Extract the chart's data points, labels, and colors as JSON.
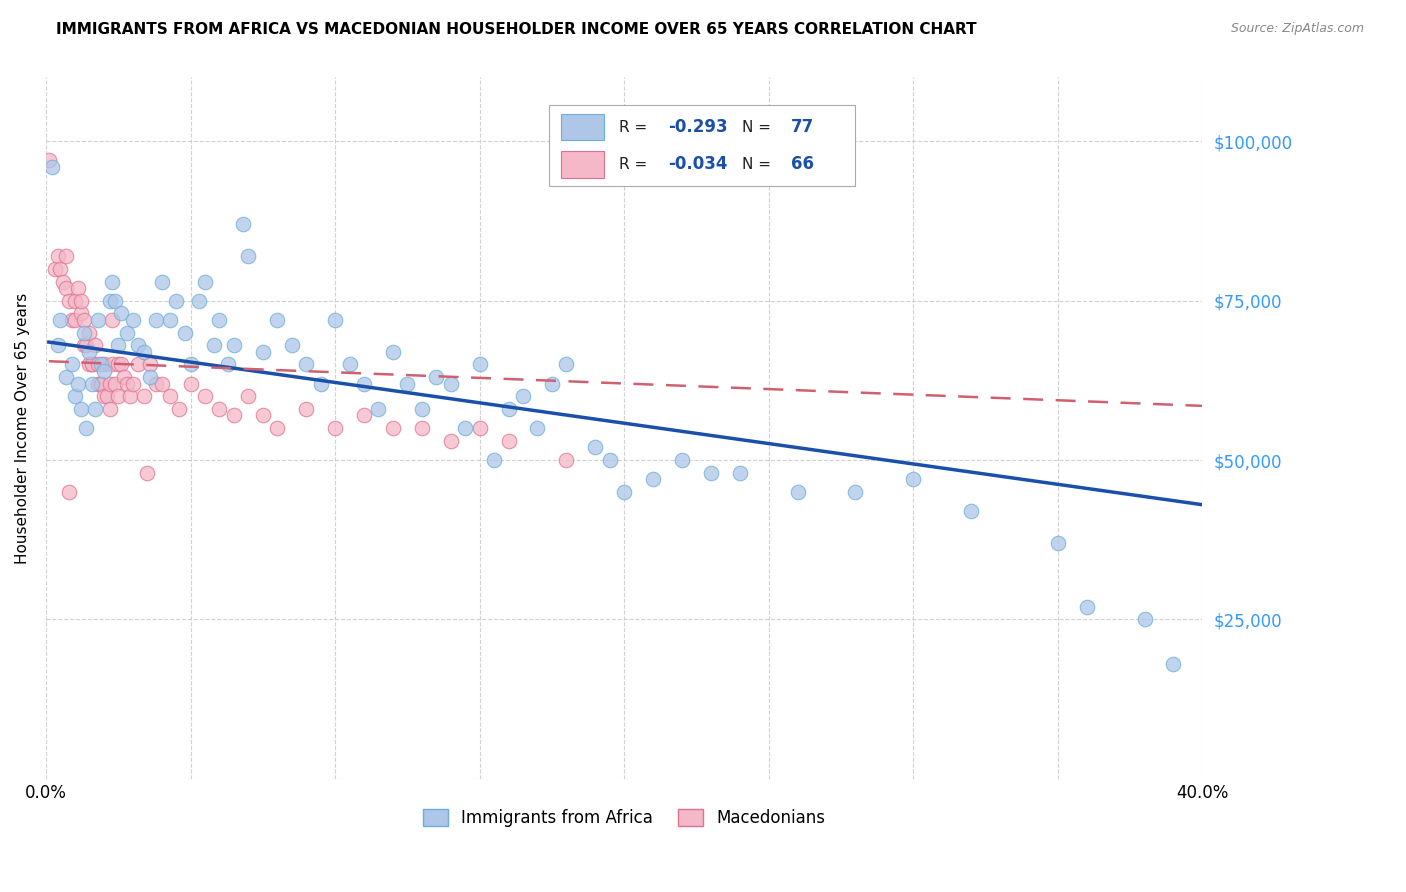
{
  "title": "IMMIGRANTS FROM AFRICA VS MACEDONIAN HOUSEHOLDER INCOME OVER 65 YEARS CORRELATION CHART",
  "source": "Source: ZipAtlas.com",
  "ylabel": "Householder Income Over 65 years",
  "xlim": [
    0.0,
    0.4
  ],
  "ylim": [
    0,
    110000
  ],
  "yticks": [
    0,
    25000,
    50000,
    75000,
    100000
  ],
  "ytick_labels": [
    "",
    "$25,000",
    "$50,000",
    "$75,000",
    "$100,000"
  ],
  "xticks": [
    0.0,
    0.05,
    0.1,
    0.15,
    0.2,
    0.25,
    0.3,
    0.35,
    0.4
  ],
  "africa_color": "#aec6e8",
  "africa_edge": "#6aaed6",
  "macedonian_color": "#f4b8c8",
  "macedonian_edge": "#e07090",
  "trend_africa_color": "#1a4faa",
  "trend_macedonian_color": "#d06070",
  "legend_africa_label": "Immigrants from Africa",
  "legend_macedonian_label": "Macedonians",
  "R_africa": -0.293,
  "N_africa": 77,
  "R_macedonian": -0.034,
  "N_macedonian": 66,
  "africa_x": [
    0.002,
    0.004,
    0.005,
    0.007,
    0.009,
    0.01,
    0.011,
    0.012,
    0.013,
    0.014,
    0.015,
    0.016,
    0.017,
    0.018,
    0.019,
    0.02,
    0.022,
    0.023,
    0.024,
    0.025,
    0.026,
    0.028,
    0.03,
    0.032,
    0.034,
    0.036,
    0.038,
    0.04,
    0.043,
    0.045,
    0.048,
    0.05,
    0.053,
    0.055,
    0.058,
    0.06,
    0.063,
    0.065,
    0.068,
    0.07,
    0.075,
    0.08,
    0.085,
    0.09,
    0.095,
    0.1,
    0.105,
    0.11,
    0.115,
    0.12,
    0.125,
    0.13,
    0.14,
    0.145,
    0.15,
    0.155,
    0.16,
    0.17,
    0.175,
    0.18,
    0.19,
    0.195,
    0.2,
    0.21,
    0.22,
    0.23,
    0.24,
    0.26,
    0.28,
    0.3,
    0.32,
    0.35,
    0.36,
    0.38,
    0.39,
    0.135,
    0.165
  ],
  "africa_y": [
    96000,
    68000,
    72000,
    63000,
    65000,
    60000,
    62000,
    58000,
    70000,
    55000,
    67000,
    62000,
    58000,
    72000,
    65000,
    64000,
    75000,
    78000,
    75000,
    68000,
    73000,
    70000,
    72000,
    68000,
    67000,
    63000,
    72000,
    78000,
    72000,
    75000,
    70000,
    65000,
    75000,
    78000,
    68000,
    72000,
    65000,
    68000,
    87000,
    82000,
    67000,
    72000,
    68000,
    65000,
    62000,
    72000,
    65000,
    62000,
    58000,
    67000,
    62000,
    58000,
    62000,
    55000,
    65000,
    50000,
    58000,
    55000,
    62000,
    65000,
    52000,
    50000,
    45000,
    47000,
    50000,
    48000,
    48000,
    45000,
    45000,
    47000,
    42000,
    37000,
    27000,
    25000,
    18000,
    63000,
    60000
  ],
  "macedonian_x": [
    0.001,
    0.003,
    0.004,
    0.005,
    0.006,
    0.007,
    0.007,
    0.008,
    0.009,
    0.01,
    0.01,
    0.011,
    0.012,
    0.012,
    0.013,
    0.013,
    0.014,
    0.015,
    0.015,
    0.016,
    0.016,
    0.017,
    0.018,
    0.018,
    0.019,
    0.019,
    0.02,
    0.02,
    0.021,
    0.022,
    0.022,
    0.023,
    0.023,
    0.024,
    0.025,
    0.025,
    0.026,
    0.027,
    0.028,
    0.029,
    0.03,
    0.032,
    0.034,
    0.036,
    0.038,
    0.04,
    0.043,
    0.046,
    0.05,
    0.055,
    0.06,
    0.065,
    0.07,
    0.075,
    0.08,
    0.09,
    0.1,
    0.11,
    0.12,
    0.13,
    0.14,
    0.15,
    0.16,
    0.18,
    0.008,
    0.035
  ],
  "macedonian_y": [
    97000,
    80000,
    82000,
    80000,
    78000,
    82000,
    77000,
    75000,
    72000,
    75000,
    72000,
    77000,
    73000,
    75000,
    68000,
    72000,
    68000,
    65000,
    70000,
    65000,
    65000,
    68000,
    62000,
    65000,
    62000,
    62000,
    60000,
    65000,
    60000,
    62000,
    58000,
    72000,
    65000,
    62000,
    65000,
    60000,
    65000,
    63000,
    62000,
    60000,
    62000,
    65000,
    60000,
    65000,
    62000,
    62000,
    60000,
    58000,
    62000,
    60000,
    58000,
    57000,
    60000,
    57000,
    55000,
    58000,
    55000,
    57000,
    55000,
    55000,
    53000,
    55000,
    53000,
    50000,
    45000,
    48000
  ],
  "trend_africa_x0": 0.001,
  "trend_africa_x1": 0.4,
  "trend_africa_y0": 68500,
  "trend_africa_y1": 43000,
  "trend_mac_x0": 0.001,
  "trend_mac_x1": 0.4,
  "trend_mac_y0": 65500,
  "trend_mac_y1": 58500
}
